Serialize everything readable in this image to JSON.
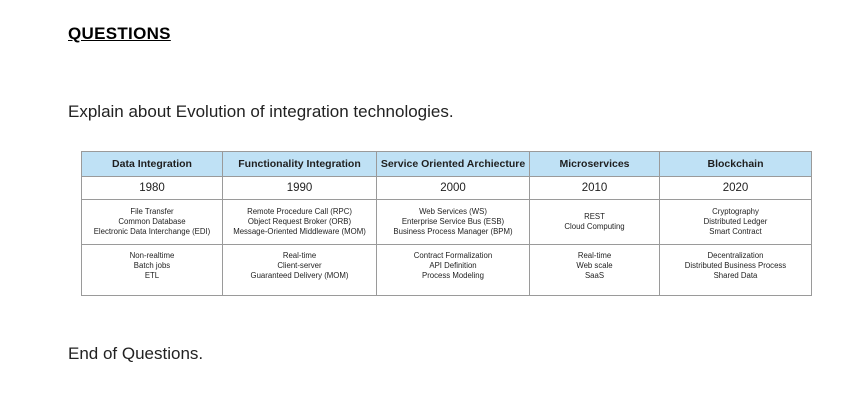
{
  "heading": "QUESTIONS",
  "question": "Explain about Evolution of integration technologies.",
  "table": {
    "columns": [
      {
        "header": "Data Integration",
        "year": "1980",
        "items1": [
          "File Transfer",
          "Common Database",
          "Electronic Data Interchange (EDI)"
        ],
        "items2": [
          "Non-realtime",
          "Batch jobs",
          "ETL"
        ]
      },
      {
        "header": "Functionality Integration",
        "year": "1990",
        "items1": [
          "Remote Procedure Call (RPC)",
          "Object Request Broker (ORB)",
          "Message-Oriented Middleware (MOM)"
        ],
        "items2": [
          "Real-time",
          "Client-server",
          "Guaranteed Delivery (MOM)"
        ]
      },
      {
        "header": "Service Oriented Archiecture",
        "year": "2000",
        "items1": [
          "Web Services (WS)",
          "Enterprise Service Bus (ESB)",
          "Business Process Manager (BPM)"
        ],
        "items2": [
          "Contract Formalization",
          "API Definition",
          "Process Modeling"
        ]
      },
      {
        "header": "Microservices",
        "year": "2010",
        "items1": [
          "REST",
          "Cloud Computing"
        ],
        "items2": [
          "Real-time",
          "Web scale",
          "SaaS"
        ]
      },
      {
        "header": "Blockchain",
        "year": "2020",
        "items1": [
          "Cryptography",
          "Distributed Ledger",
          "Smart Contract"
        ],
        "items2": [
          "Decentralization",
          "Distributed Business Process",
          "Shared Data"
        ]
      }
    ]
  },
  "end_text": "End of Questions."
}
